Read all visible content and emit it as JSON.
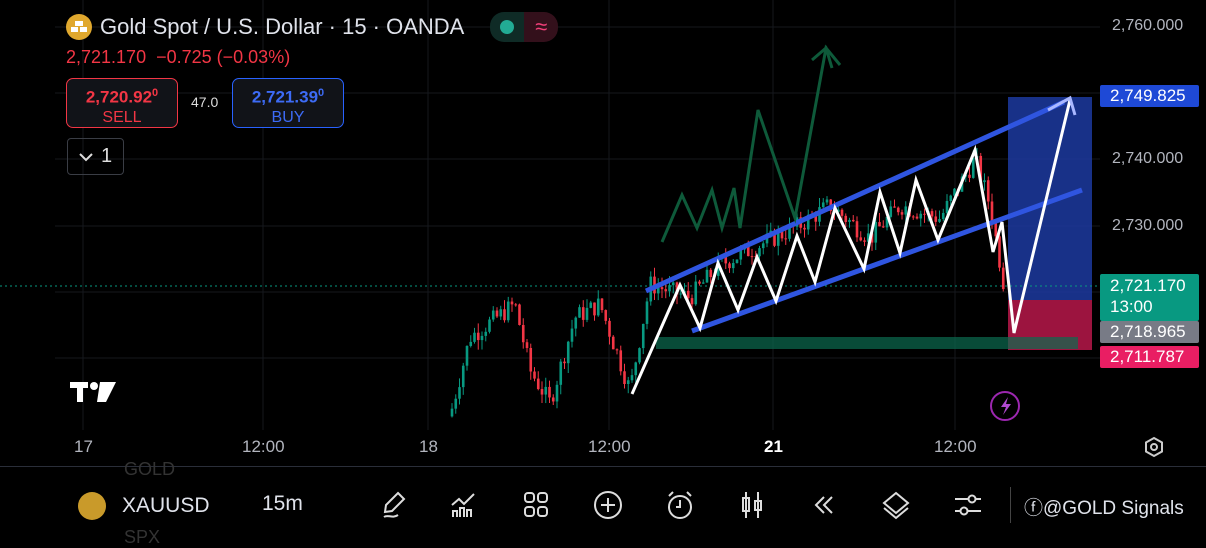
{
  "header": {
    "title": "Gold Spot / U.S. Dollar · 15 · OANDA",
    "last_price": "2,721.170",
    "change": "−0.725 (−0.03%)"
  },
  "trade": {
    "sell_price": "2,720.92",
    "sell_sup": "0",
    "sell_label": "SELL",
    "spread": "47.0",
    "buy_price": "2,721.39",
    "buy_sup": "0",
    "buy_label": "BUY"
  },
  "indicators": {
    "count": "1"
  },
  "price_axis": {
    "ticks": [
      "2,760.000",
      "2,740.000",
      "2,730.000"
    ],
    "labels": {
      "target": "2,749.825",
      "last": "2,721.170",
      "countdown": "13:00",
      "entry": "2,718.965",
      "stop": "2,711.787"
    }
  },
  "time_axis": {
    "ticks": [
      "17",
      "12:00",
      "18",
      "12:00",
      "21",
      "12:00"
    ]
  },
  "bottom_bar": {
    "symbol": "XAUUSD",
    "timeframe": "15m",
    "prev_symbol": "GOLD",
    "next_symbol": "SPX",
    "watermark": "@GOLD Signals",
    "tools": [
      "draw-icon",
      "indicators-icon",
      "layouts-icon",
      "add-icon",
      "alert-icon",
      "chart-type-icon",
      "replay-icon",
      "layers-icon",
      "settings-icon"
    ]
  },
  "colors": {
    "up": "#089981",
    "down": "#f23645",
    "accent": "#2962ff",
    "target": "#1e3fa8",
    "stop": "#b7184a"
  }
}
